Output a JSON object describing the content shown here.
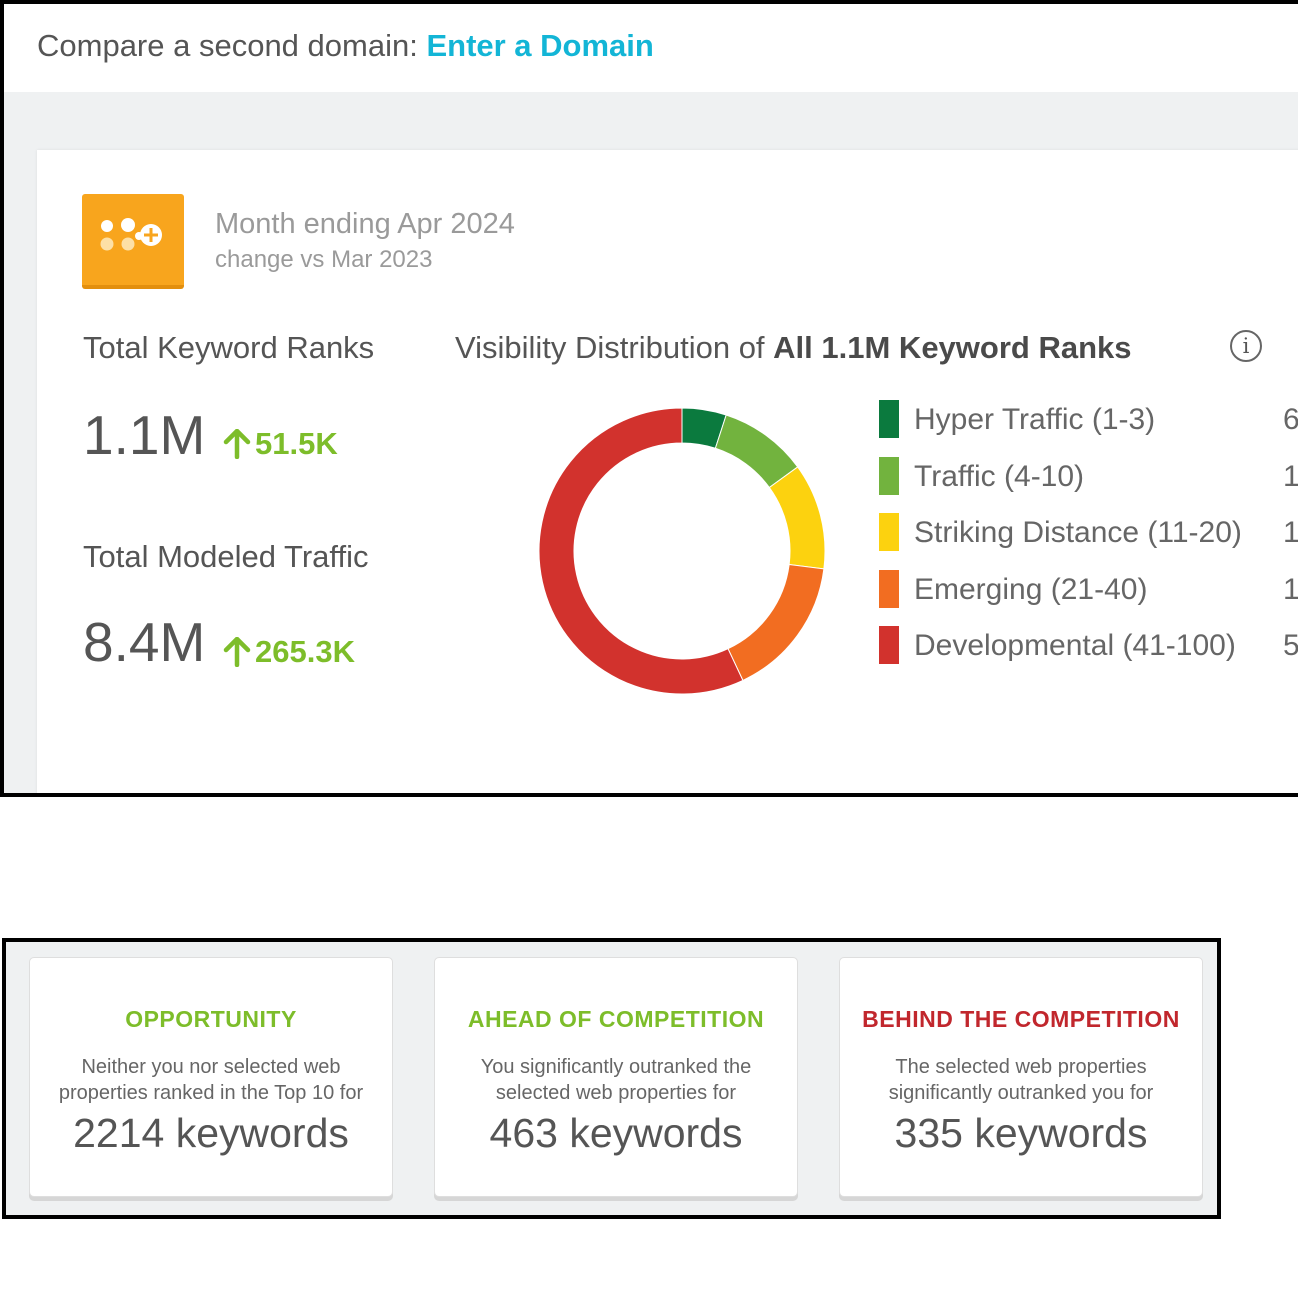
{
  "compare": {
    "prefix": "Compare a second domain:",
    "link": "Enter a Domain"
  },
  "period": {
    "title": "Month ending Apr 2024",
    "subtitle": "change vs Mar 2023"
  },
  "metrics": {
    "keyword_ranks": {
      "label": "Total Keyword Ranks",
      "value": "1.1M",
      "change": "51.5K"
    },
    "traffic": {
      "label": "Total Modeled Traffic",
      "value": "8.4M",
      "change": "265.3K"
    }
  },
  "visibility": {
    "title_prefix": "Visibility Distribution of",
    "title_bold": "All 1.1M Keyword Ranks",
    "info_icon": "info-icon"
  },
  "legend": [
    {
      "label": "Hyper Traffic (1-3)",
      "value": "6",
      "color": "#0b7a3e"
    },
    {
      "label": "Traffic (4-10)",
      "value": "1",
      "color": "#72b33e"
    },
    {
      "label": "Striking Distance (11-20)",
      "value": "1",
      "color": "#fcd20f"
    },
    {
      "label": "Emerging (21-40)",
      "value": "1",
      "color": "#f26d21"
    },
    {
      "label": "Developmental (41-100)",
      "value": "5",
      "color": "#d2322d"
    }
  ],
  "chart_data": {
    "type": "pie",
    "donut": true,
    "labels": [
      "Hyper Traffic (1-3)",
      "Traffic (4-10)",
      "Striking Distance (11-20)",
      "Emerging (21-40)",
      "Developmental (41-100)"
    ],
    "values": [
      5,
      10,
      12,
      16,
      57
    ],
    "colors": [
      "#0b7a3e",
      "#72b33e",
      "#fcd20f",
      "#f26d21",
      "#d2322d"
    ]
  },
  "competition": [
    {
      "title": "OPPORTUNITY",
      "title_color": "#7dbd2a",
      "desc_line1": "Neither you nor selected web",
      "desc_line2": "properties ranked in the Top 10 for",
      "count": "2214 keywords"
    },
    {
      "title": "AHEAD OF COMPETITION",
      "title_color": "#7dbd2a",
      "desc_line1": "You significantly outranked the",
      "desc_line2": "selected web properties for",
      "count": "463 keywords"
    },
    {
      "title": "BEHIND THE COMPETITION",
      "title_color": "#c1272d",
      "desc_line1": "The selected web properties",
      "desc_line2": "significantly outranked you for",
      "count": "335 keywords"
    }
  ]
}
